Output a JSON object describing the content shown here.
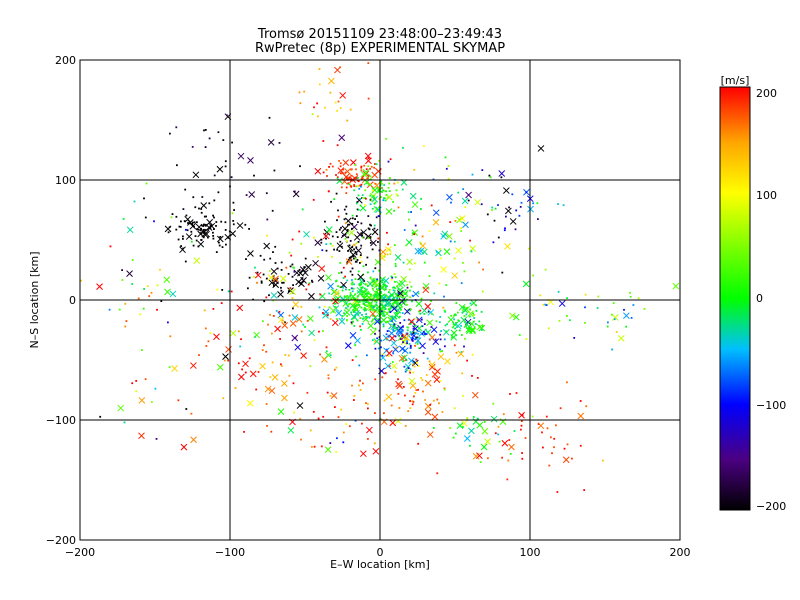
{
  "chart_data": {
    "type": "scatter",
    "title": "Tromsø 20151109 23:48:00–23:49:43",
    "subtitle": "RwPretec (8p) EXPERIMENTAL SKYMAP",
    "xlabel": "E–W location [km]",
    "ylabel": "N–S location [km]",
    "xlim": [
      -200,
      200
    ],
    "ylim": [
      -200,
      200
    ],
    "xticks": [
      "−200",
      "−100",
      "0",
      "100",
      "200"
    ],
    "yticks": [
      "−200",
      "−100",
      "0",
      "100",
      "200"
    ],
    "grid": true,
    "colorbar": {
      "unit": "[m/s]",
      "range": [
        -200,
        200
      ],
      "ticks": [
        "200",
        "100",
        "0",
        "−100",
        "−200"
      ],
      "colors": [
        "#000000",
        "#4b0082",
        "#0000ff",
        "#00bfff",
        "#00ff00",
        "#ffff00",
        "#ffa500",
        "#ff0000"
      ]
    },
    "clusters": [
      {
        "x": -5,
        "y": 0,
        "sx": 14,
        "sy": 10,
        "n": 420,
        "v": 0,
        "vs": 25
      },
      {
        "x": 18,
        "y": -30,
        "sx": 14,
        "sy": 12,
        "n": 160,
        "v": -70,
        "vs": 50
      },
      {
        "x": -20,
        "y": 52,
        "sx": 9,
        "sy": 14,
        "n": 110,
        "v": -200,
        "vs": 10
      },
      {
        "x": -18,
        "y": 105,
        "sx": 10,
        "sy": 6,
        "n": 80,
        "v": 185,
        "vs": 15
      },
      {
        "x": -3,
        "y": 90,
        "sx": 9,
        "sy": 9,
        "n": 80,
        "v": 15,
        "vs": 30
      },
      {
        "x": -120,
        "y": 60,
        "sx": 12,
        "sy": 10,
        "n": 110,
        "v": -200,
        "vs": 5
      },
      {
        "x": -65,
        "y": 15,
        "sx": 14,
        "sy": 12,
        "n": 60,
        "v": -200,
        "vs": 5
      },
      {
        "x": 55,
        "y": -15,
        "sx": 10,
        "sy": 8,
        "n": 70,
        "v": 5,
        "vs": 20
      },
      {
        "x": 30,
        "y": -60,
        "sx": 16,
        "sy": 12,
        "n": 50,
        "v": 160,
        "vs": 40
      },
      {
        "x": 0,
        "y": -85,
        "sx": 25,
        "sy": 15,
        "n": 60,
        "v": 170,
        "vs": 30
      },
      {
        "x": 100,
        "y": -110,
        "sx": 20,
        "sy": 20,
        "n": 50,
        "v": 185,
        "vs": 20
      },
      {
        "x": -70,
        "y": -50,
        "sx": 25,
        "sy": 25,
        "n": 60,
        "v": 180,
        "vs": 30
      },
      {
        "x": 80,
        "y": 80,
        "sx": 22,
        "sy": 20,
        "n": 40,
        "v": -120,
        "vs": 80
      },
      {
        "x": 30,
        "y": 60,
        "sx": 30,
        "sy": 30,
        "n": 80,
        "v": 40,
        "vs": 100
      },
      {
        "x": 140,
        "y": -10,
        "sx": 30,
        "sy": 15,
        "n": 45,
        "v": 0,
        "vs": 80
      },
      {
        "x": -100,
        "y": 120,
        "sx": 25,
        "sy": 25,
        "n": 40,
        "v": -190,
        "vs": 20
      },
      {
        "x": -60,
        "y": -10,
        "sx": 30,
        "sy": 25,
        "n": 60,
        "v": 80,
        "vs": 120
      },
      {
        "x": -160,
        "y": 20,
        "sx": 20,
        "sy": 30,
        "n": 40,
        "v": 50,
        "vs": 120
      },
      {
        "x": -30,
        "y": 160,
        "sx": 15,
        "sy": 15,
        "n": 25,
        "v": 150,
        "vs": 40
      },
      {
        "x": 60,
        "y": -110,
        "sx": 15,
        "sy": 10,
        "n": 30,
        "v": 20,
        "vs": 40
      },
      {
        "x": -30,
        "y": -110,
        "sx": 25,
        "sy": 15,
        "n": 30,
        "v": 60,
        "vs": 120
      },
      {
        "x": 0,
        "y": 30,
        "sx": 40,
        "sy": 40,
        "n": 120,
        "v": 60,
        "vs": 110
      },
      {
        "x": -150,
        "y": -80,
        "sx": 20,
        "sy": 20,
        "n": 20,
        "v": 60,
        "vs": 130
      }
    ]
  }
}
